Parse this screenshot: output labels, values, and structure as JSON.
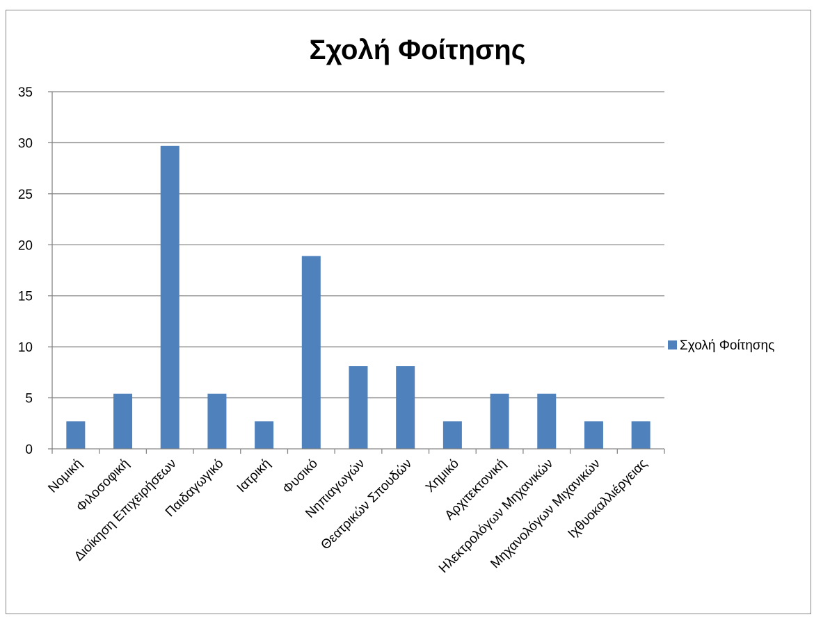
{
  "chart_data": {
    "type": "bar",
    "title": "Σχολή Φοίτησης",
    "xlabel": "",
    "ylabel": "",
    "categories": [
      "Νομική",
      "Φιλοσοφική",
      "Διοίκηση Επιχειρήσεων",
      "Παιδαγωγικό",
      "Ιατρική",
      "Φυσικό",
      "Νηπιαγωγών",
      "Θεατρικών Σπουδών",
      "Χημικό",
      "Αρχιτεκτονική",
      "Ηλεκτρολόγων Μηχανικών",
      "Μηχανολόγων Μιχανικών",
      "Ιχθυοκαλλιέργειας"
    ],
    "series": [
      {
        "name": "Σχολή Φοίτησης",
        "values": [
          2.7,
          5.4,
          29.7,
          5.4,
          2.7,
          18.9,
          8.1,
          8.1,
          2.7,
          5.4,
          5.4,
          2.7,
          2.7
        ],
        "color": "#4f81bd"
      }
    ],
    "ylim": [
      0,
      35
    ],
    "yticks": [
      "0",
      "5",
      "10",
      "15",
      "20",
      "25",
      "30",
      "35"
    ],
    "grid": true,
    "legend": "right",
    "gridline_color": "#868686"
  }
}
